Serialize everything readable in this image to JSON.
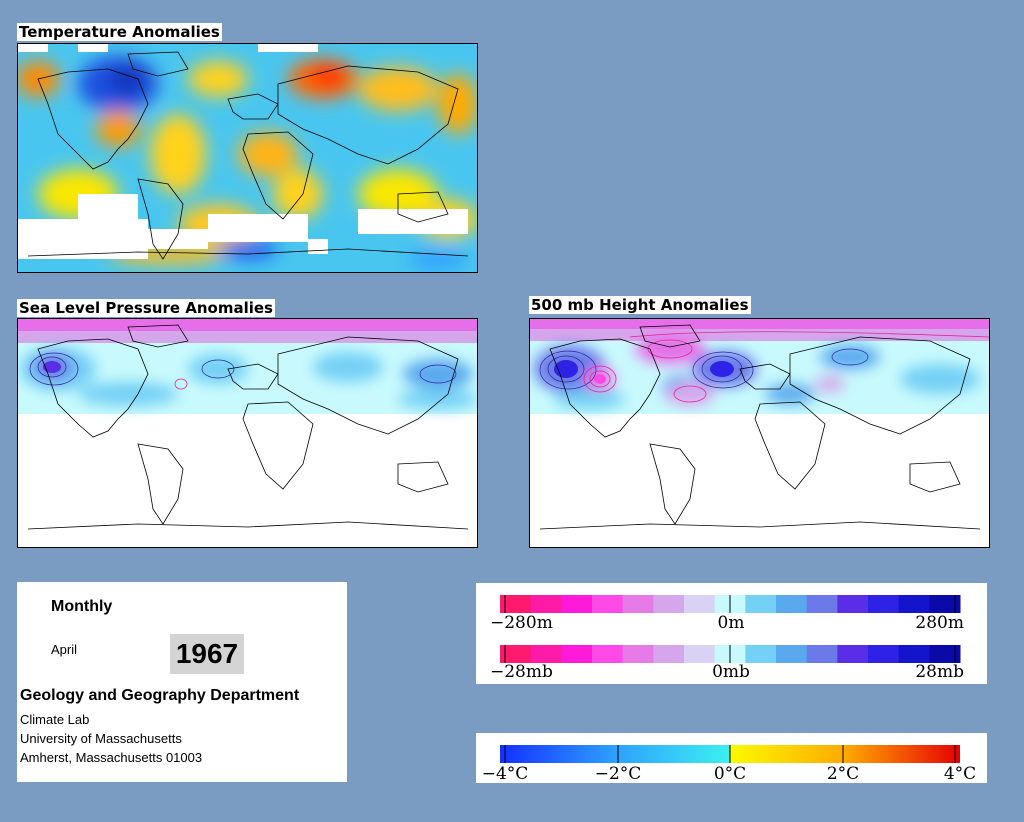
{
  "maps": {
    "temperature": {
      "title": "Temperature Anomalies"
    },
    "slp": {
      "title": "Sea Level Pressure Anomalies"
    },
    "height": {
      "title": "500 mb Height Anomalies"
    }
  },
  "info": {
    "frequency": "Monthly",
    "month": "April",
    "year": "1967",
    "department": "Geology and Geography Department",
    "lab": "Climate Lab",
    "university": "University of Massachusetts",
    "address": "Amherst, Massachusetts 01003"
  },
  "legend_height": {
    "labels": [
      "−280m",
      "0m",
      "280m"
    ]
  },
  "legend_pressure": {
    "labels": [
      "−28mb",
      "0mb",
      "28mb"
    ]
  },
  "legend_temp": {
    "labels": [
      "−4°C",
      "−2°C",
      "0°C",
      "2°C",
      "4°C"
    ]
  },
  "colors": {
    "anomaly_scale": [
      "#ff1a6e",
      "#ff1aa8",
      "#ff1ad9",
      "#ff4ae8",
      "#e67be8",
      "#d6a6ec",
      "#dad2f5",
      "#c8fafd",
      "#74d0f5",
      "#5aa8ee",
      "#6b7ae8",
      "#5a2ee6",
      "#2e22e6",
      "#1414cc",
      "#0a0aa8"
    ],
    "temp_scale": [
      "#1430ff",
      "#1e6cff",
      "#2ea0ff",
      "#46c8ff",
      "#3ce6f0",
      "#fafa00",
      "#ffd21e",
      "#ffaa00",
      "#ff7a00",
      "#ff3c00",
      "#e60000"
    ]
  }
}
